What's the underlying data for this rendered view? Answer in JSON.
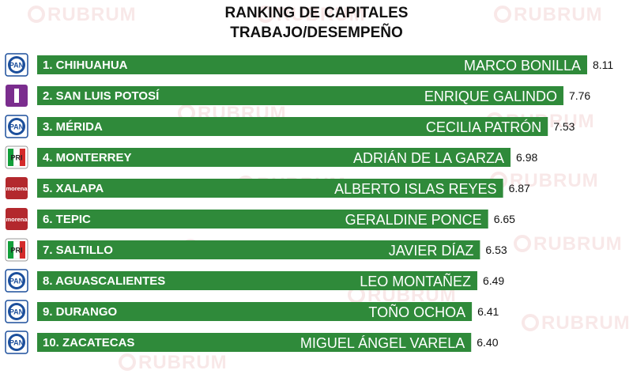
{
  "title_line1": "RANKING DE CAPITALES",
  "title_line2": "TRABAJO/DESEMPEÑO",
  "watermark_text": "RUBRUM",
  "colors": {
    "bar": "#2f8a3a",
    "pan": "#1c4f9c",
    "independiente": "#7b2d8e",
    "pri_green": "#139e3a",
    "pri_red": "#d42a2a",
    "morena": "#b3282d"
  },
  "chart_data": {
    "type": "bar",
    "orientation": "horizontal",
    "title": "RANKING DE CAPITALES TRABAJO/DESEMPEÑO",
    "categories": [
      "1. CHIHUAHUA",
      "2. SAN LUIS POTOSÍ",
      "3. MÉRIDA",
      "4. MONTERREY",
      "5. XALAPA",
      "6. TEPIC",
      "7. SALTILLO",
      "8. AGUASCALIENTES",
      "9. DURANGO",
      "10. ZACATECAS"
    ],
    "mayors": [
      "MARCO BONILLA",
      "ENRIQUE GALINDO",
      "CECILIA PATRÓN",
      "ADRIÁN DE LA GARZA",
      "ALBERTO ISLAS REYES",
      "GERALDINE PONCE",
      "JAVIER DÍAZ",
      "LEO MONTAÑEZ",
      "TOÑO OCHOA",
      "MIGUEL ÁNGEL VARELA"
    ],
    "parties": [
      "PAN",
      "I",
      "PAN",
      "PRI",
      "morena",
      "morena",
      "PRI",
      "PAN",
      "PAN",
      "PAN"
    ],
    "values": [
      8.11,
      7.76,
      7.53,
      6.98,
      6.87,
      6.65,
      6.53,
      6.49,
      6.41,
      6.4
    ],
    "value_labels": [
      "8.11",
      "7.76",
      "7.53",
      "6.98",
      "6.87",
      "6.65",
      "6.53",
      "6.49",
      "6.41",
      "6.40"
    ],
    "grid": false,
    "legend": "none"
  }
}
